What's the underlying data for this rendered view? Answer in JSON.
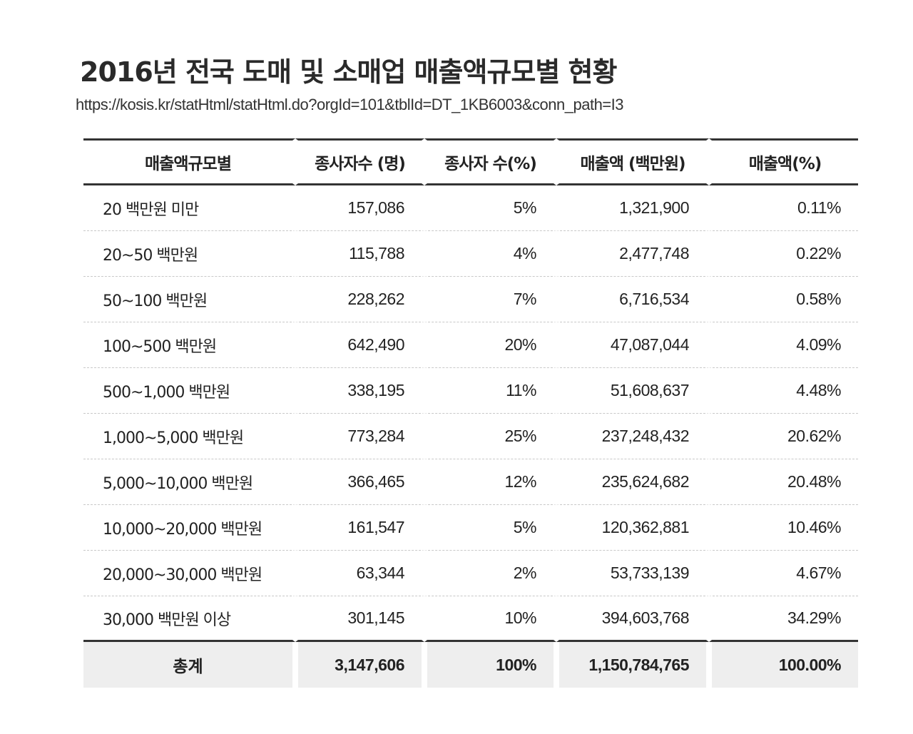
{
  "title": "2016년 전국 도매 및 소매업 매출액규모별 현황",
  "source_url": "https://kosis.kr/statHtml/statHtml.do?orgId=101&tblId=DT_1KB6003&conn_path=I3",
  "table": {
    "headers": [
      "매출액규모별",
      "종사자수 (명)",
      "종사자 수(%)",
      "매출액 (백만원)",
      "매출액(%)"
    ],
    "rows": [
      [
        "20 백만원 미만",
        "157,086",
        "5%",
        "1,321,900",
        "0.11%"
      ],
      [
        "20~50 백만원",
        "115,788",
        "4%",
        "2,477,748",
        "0.22%"
      ],
      [
        "50~100 백만원",
        "228,262",
        "7%",
        "6,716,534",
        "0.58%"
      ],
      [
        "100~500 백만원",
        "642,490",
        "20%",
        "47,087,044",
        "4.09%"
      ],
      [
        "500~1,000 백만원",
        "338,195",
        "11%",
        "51,608,637",
        "4.48%"
      ],
      [
        "1,000~5,000 백만원",
        "773,284",
        "25%",
        "237,248,432",
        "20.62%"
      ],
      [
        "5,000~10,000 백만원",
        "366,465",
        "12%",
        "235,624,682",
        "20.48%"
      ],
      [
        "10,000~20,000 백만원",
        "161,547",
        "5%",
        "120,362,881",
        "10.46%"
      ],
      [
        "20,000~30,000 백만원",
        "63,344",
        "2%",
        "53,733,139",
        "4.67%"
      ],
      [
        "30,000 백만원 이상",
        "301,145",
        "10%",
        "394,603,768",
        "34.29%"
      ]
    ],
    "total": [
      "총계",
      "3,147,606",
      "100%",
      "1,150,784,765",
      "100.00%"
    ]
  },
  "colors": {
    "rule": "#333333",
    "dashed_rule": "#c8c8c8",
    "total_background": "#eeeeee",
    "text": "#222222"
  }
}
